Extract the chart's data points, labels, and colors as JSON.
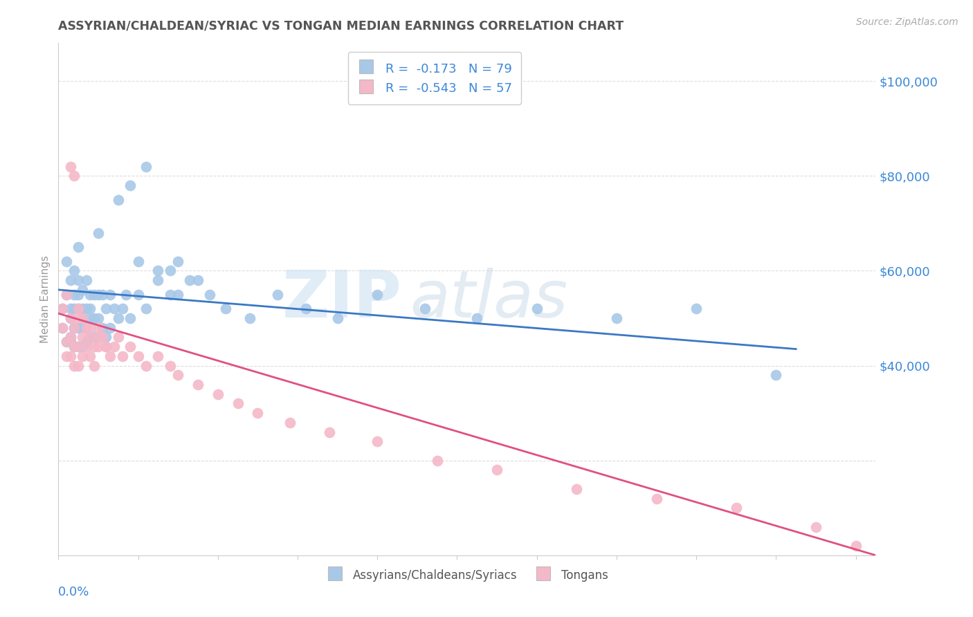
{
  "title": "ASSYRIAN/CHALDEAN/SYRIAC VS TONGAN MEDIAN EARNINGS CORRELATION CHART",
  "source_text": "Source: ZipAtlas.com",
  "ylabel": "Median Earnings",
  "x_range": [
    0.0,
    0.205
  ],
  "y_range": [
    0,
    108000
  ],
  "legend_blue_label": "R =  -0.173   N = 79",
  "legend_pink_label": "R =  -0.543   N = 57",
  "blue_color": "#a8c8e8",
  "pink_color": "#f4b8c8",
  "blue_line_color": "#3a78c4",
  "pink_line_color": "#e05080",
  "title_color": "#555555",
  "axis_label_color": "#3a88d8",
  "watermark_zip_color": "#d0e4f4",
  "watermark_atlas_color": "#d0dce8",
  "blue_scatter_x": [
    0.001,
    0.001,
    0.002,
    0.002,
    0.002,
    0.003,
    0.003,
    0.003,
    0.003,
    0.003,
    0.004,
    0.004,
    0.004,
    0.004,
    0.004,
    0.005,
    0.005,
    0.005,
    0.005,
    0.005,
    0.005,
    0.006,
    0.006,
    0.006,
    0.006,
    0.006,
    0.007,
    0.007,
    0.007,
    0.007,
    0.008,
    0.008,
    0.008,
    0.008,
    0.009,
    0.009,
    0.009,
    0.01,
    0.01,
    0.01,
    0.011,
    0.011,
    0.012,
    0.012,
    0.013,
    0.013,
    0.014,
    0.015,
    0.016,
    0.017,
    0.018,
    0.02,
    0.022,
    0.025,
    0.028,
    0.03,
    0.033,
    0.038,
    0.042,
    0.048,
    0.055,
    0.062,
    0.07,
    0.08,
    0.092,
    0.105,
    0.12,
    0.14,
    0.16,
    0.18,
    0.01,
    0.015,
    0.02,
    0.025,
    0.03,
    0.035,
    0.018,
    0.022,
    0.028
  ],
  "blue_scatter_y": [
    52000,
    48000,
    55000,
    62000,
    45000,
    58000,
    50000,
    45000,
    52000,
    46000,
    60000,
    52000,
    48000,
    55000,
    44000,
    58000,
    52000,
    48000,
    44000,
    55000,
    65000,
    52000,
    48000,
    56000,
    44000,
    50000,
    58000,
    52000,
    48000,
    45000,
    55000,
    50000,
    46000,
    52000,
    55000,
    50000,
    46000,
    55000,
    50000,
    46000,
    55000,
    48000,
    52000,
    46000,
    55000,
    48000,
    52000,
    50000,
    52000,
    55000,
    50000,
    55000,
    52000,
    58000,
    55000,
    62000,
    58000,
    55000,
    52000,
    50000,
    55000,
    52000,
    50000,
    55000,
    52000,
    50000,
    52000,
    50000,
    52000,
    38000,
    68000,
    75000,
    62000,
    60000,
    55000,
    58000,
    78000,
    82000,
    60000
  ],
  "pink_scatter_x": [
    0.001,
    0.001,
    0.002,
    0.002,
    0.002,
    0.003,
    0.003,
    0.003,
    0.004,
    0.004,
    0.004,
    0.005,
    0.005,
    0.005,
    0.006,
    0.006,
    0.007,
    0.007,
    0.008,
    0.008,
    0.009,
    0.009,
    0.01,
    0.01,
    0.011,
    0.012,
    0.013,
    0.014,
    0.015,
    0.016,
    0.018,
    0.02,
    0.022,
    0.025,
    0.028,
    0.03,
    0.035,
    0.04,
    0.045,
    0.05,
    0.058,
    0.068,
    0.08,
    0.095,
    0.11,
    0.13,
    0.15,
    0.17,
    0.19,
    0.2,
    0.003,
    0.004,
    0.005,
    0.006,
    0.008,
    0.01,
    0.012
  ],
  "pink_scatter_y": [
    52000,
    48000,
    55000,
    45000,
    42000,
    50000,
    46000,
    42000,
    48000,
    44000,
    40000,
    50000,
    44000,
    40000,
    46000,
    42000,
    48000,
    44000,
    46000,
    42000,
    44000,
    40000,
    48000,
    44000,
    46000,
    44000,
    42000,
    44000,
    46000,
    42000,
    44000,
    42000,
    40000,
    42000,
    40000,
    38000,
    36000,
    34000,
    32000,
    30000,
    28000,
    26000,
    24000,
    20000,
    18000,
    14000,
    12000,
    10000,
    6000,
    2000,
    82000,
    80000,
    52000,
    50000,
    48000,
    46000,
    44000
  ],
  "blue_line_x": [
    0.0,
    0.185
  ],
  "blue_line_y": [
    56000,
    43500
  ],
  "pink_line_x": [
    0.0,
    0.205
  ],
  "pink_line_y": [
    51000,
    0
  ],
  "y_ticks": [
    0,
    20000,
    40000,
    60000,
    80000,
    100000
  ],
  "y_tick_labels": [
    "",
    "",
    "$40,000",
    "$60,000",
    "$80,000",
    "$100,000"
  ],
  "grid_color": "#dddddd",
  "spine_color": "#cccccc"
}
